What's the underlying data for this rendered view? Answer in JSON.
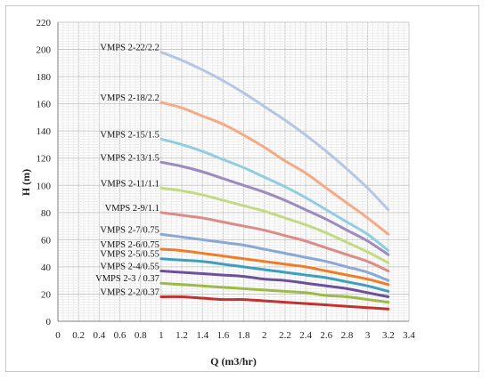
{
  "chart_data": {
    "type": "line",
    "title": "",
    "xlabel": "Q (m3/hr)",
    "ylabel": "H (m)",
    "xlim": [
      0,
      3.4
    ],
    "ylim": [
      0,
      220
    ],
    "x_ticks": [
      "0",
      "0.2",
      "0.4",
      "0.6",
      "0.8",
      "1",
      "1.2",
      "1.4",
      "1.6",
      "1.8",
      "2",
      "2.2",
      "2.4",
      "2.6",
      "2.8",
      "3",
      "3.2",
      "3.4"
    ],
    "y_ticks": [
      "0",
      "20",
      "40",
      "60",
      "80",
      "100",
      "120",
      "140",
      "160",
      "180",
      "200",
      "220"
    ],
    "grid": true,
    "legend": "labels at curve start (left)",
    "x": [
      1.0,
      1.2,
      1.4,
      1.6,
      1.8,
      2.0,
      2.2,
      2.4,
      2.6,
      2.8,
      3.0,
      3.2
    ],
    "series": [
      {
        "name": "VMPS 2-22/2.2",
        "color": "#b4c6e4",
        "values": [
          198,
          192,
          185,
          177,
          168,
          158,
          148,
          137,
          125,
          112,
          98,
          82
        ]
      },
      {
        "name": "VMPS 2-18/2.2",
        "color": "#f6aa84",
        "values": [
          161,
          157,
          151,
          145,
          137,
          128,
          118,
          109,
          98,
          87,
          76,
          64
        ]
      },
      {
        "name": "VMPS 2-15/1.5",
        "color": "#91cde0",
        "values": [
          134,
          130,
          125,
          119,
          113,
          106,
          99,
          91,
          82,
          73,
          64,
          52
        ]
      },
      {
        "name": "VMPS 2-13/1.5",
        "color": "#9b8bbf",
        "values": [
          117,
          114,
          110,
          105,
          100,
          95,
          89,
          82,
          75,
          67,
          59,
          49
        ]
      },
      {
        "name": "VMPS 2-11/1.1",
        "color": "#c3db80",
        "values": [
          98,
          96,
          93,
          89,
          85,
          81,
          76,
          71,
          65,
          58,
          51,
          43
        ]
      },
      {
        "name": "VMPS 2-9/1.1",
        "color": "#dc8b89",
        "values": [
          80,
          78,
          76,
          73,
          70,
          67,
          63,
          59,
          54,
          49,
          44,
          37
        ]
      },
      {
        "name": "VMPS 2-7/0.75",
        "color": "#8ba7d4",
        "values": [
          64,
          62,
          60,
          58,
          56,
          53,
          50,
          47,
          44,
          40,
          36,
          30
        ]
      },
      {
        "name": "VMPS 2-6/0.75",
        "color": "#f07c26",
        "values": [
          53,
          52,
          50,
          48,
          46,
          44,
          42,
          40,
          37,
          34,
          31,
          27
        ]
      },
      {
        "name": "VMPS 2-5/0.55",
        "color": "#3e9ec0",
        "values": [
          46,
          45,
          44,
          42,
          40,
          38,
          36,
          34,
          32,
          29,
          26,
          22
        ]
      },
      {
        "name": "VMPS 2-4/0.55",
        "color": "#6e4f9e",
        "values": [
          37,
          36,
          35,
          34,
          33,
          31,
          30,
          28,
          26,
          24,
          21,
          18
        ]
      },
      {
        "name": "VMPS 2-3 / 0.37",
        "color": "#9bbb46",
        "values": [
          28,
          27,
          26,
          25,
          24,
          23,
          22,
          21,
          19,
          18,
          16,
          14
        ]
      },
      {
        "name": "VMPS 2-2/0.37",
        "color": "#c0332f",
        "values": [
          18,
          18,
          17,
          16,
          16,
          15,
          14,
          13,
          12,
          11,
          10,
          9
        ]
      }
    ]
  }
}
